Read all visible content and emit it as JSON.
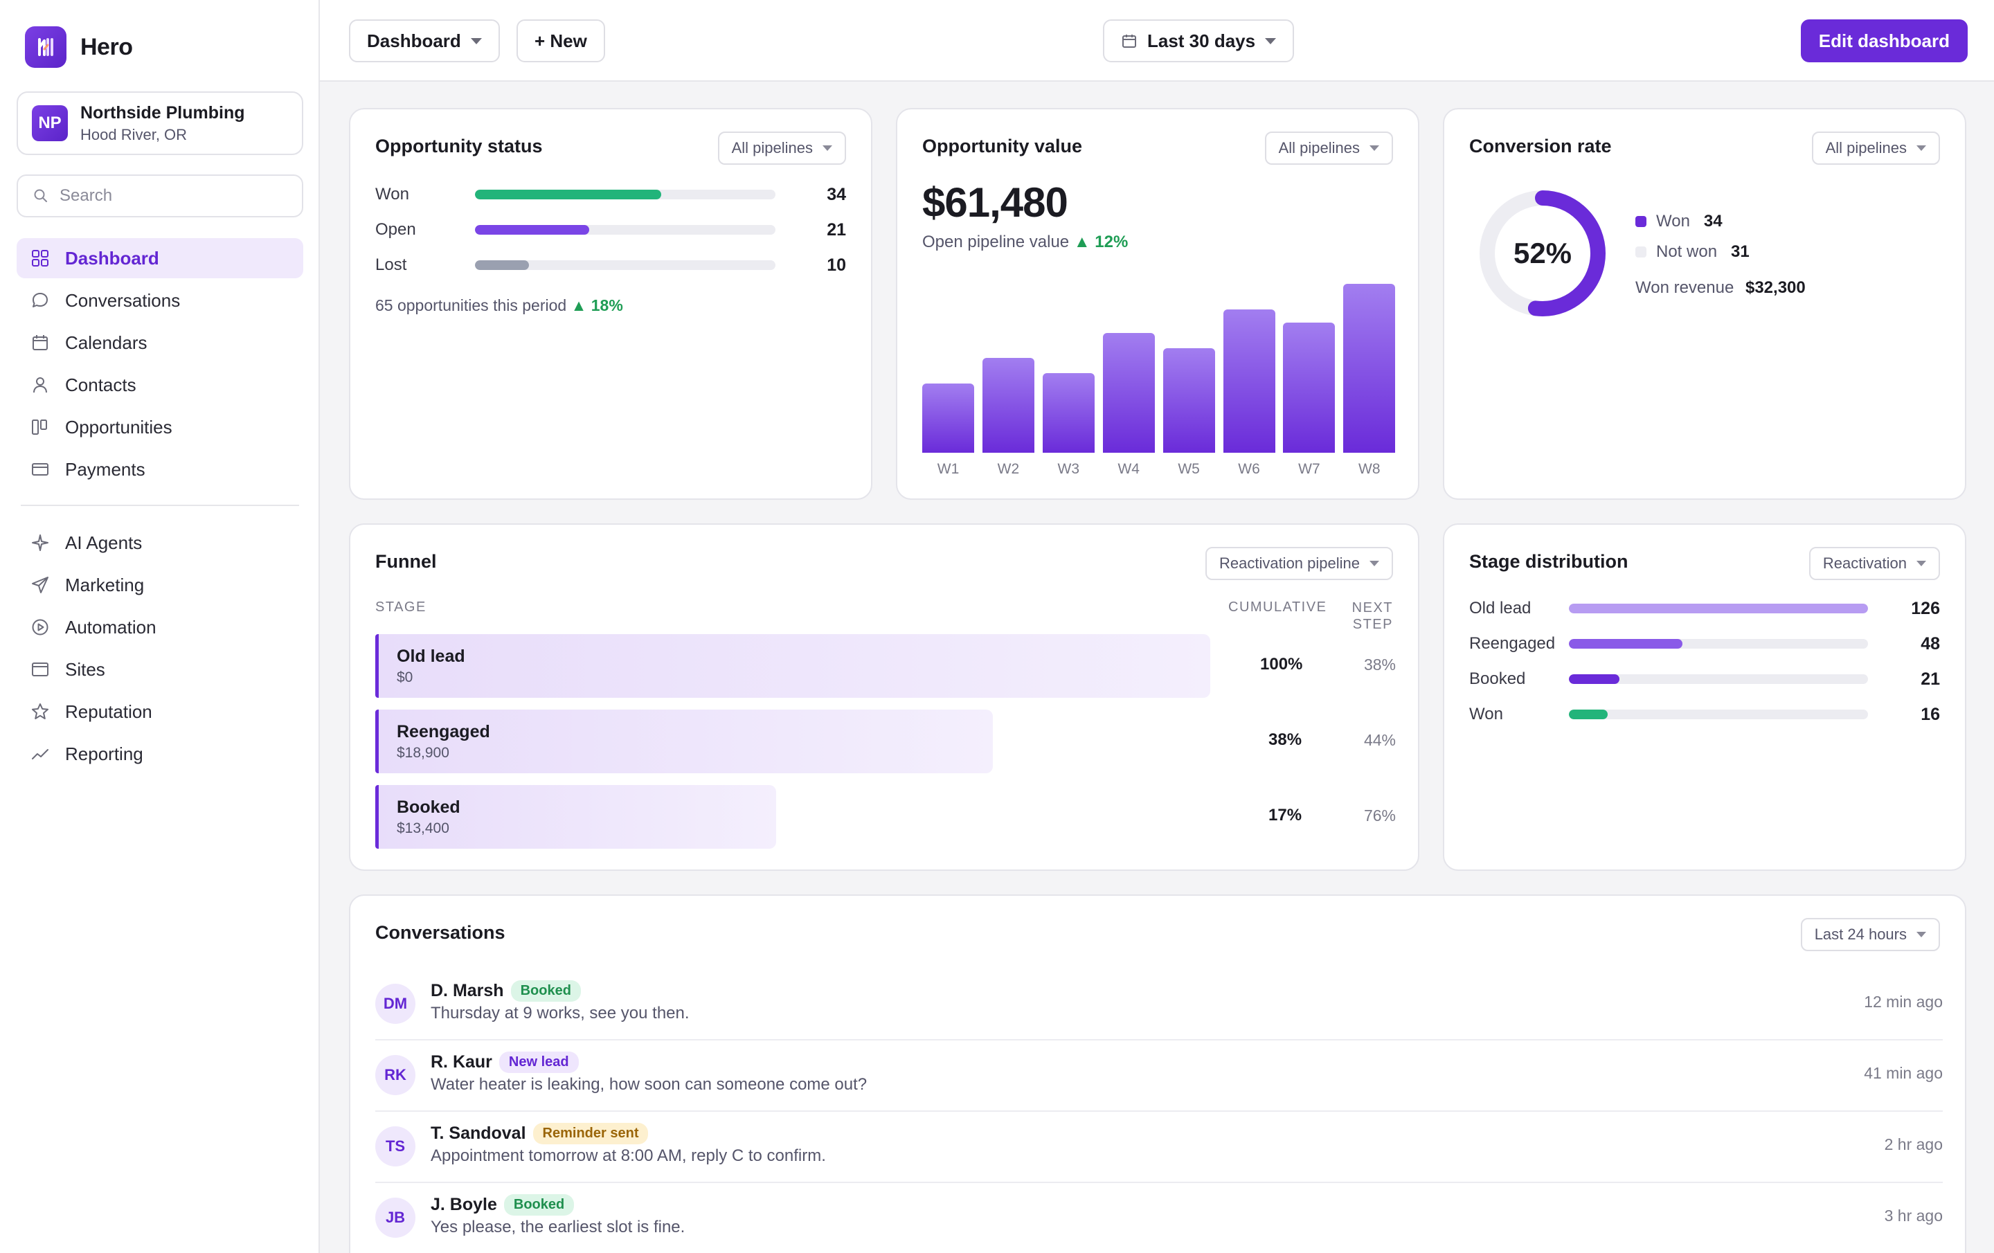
{
  "app": {
    "name": "Hero"
  },
  "account": {
    "initials": "NP",
    "name": "Northside Plumbing",
    "location": "Hood River, OR"
  },
  "search": {
    "placeholder": "Search"
  },
  "nav": {
    "primary": [
      {
        "label": "Dashboard",
        "icon": "grid-icon",
        "active": true
      },
      {
        "label": "Conversations",
        "icon": "chat-bubble-icon"
      },
      {
        "label": "Calendars",
        "icon": "calendar-icon"
      },
      {
        "label": "Contacts",
        "icon": "person-icon"
      },
      {
        "label": "Opportunities",
        "icon": "kanban-icon"
      },
      {
        "label": "Payments",
        "icon": "credit-card-icon"
      }
    ],
    "secondary": [
      {
        "label": "AI Agents",
        "icon": "sparkle-icon"
      },
      {
        "label": "Marketing",
        "icon": "send-icon"
      },
      {
        "label": "Automation",
        "icon": "play-circle-icon"
      },
      {
        "label": "Sites",
        "icon": "browser-window-icon"
      },
      {
        "label": "Reputation",
        "icon": "star-icon"
      },
      {
        "label": "Reporting",
        "icon": "trend-line-icon"
      }
    ]
  },
  "topbar": {
    "dashboard_select": "Dashboard",
    "new_button": "+ New",
    "date_range": "Last 30 days",
    "edit_button": "Edit dashboard"
  },
  "opportunity_status": {
    "title": "Opportunity status",
    "filter": "All pipelines",
    "rows": [
      {
        "label": "Won",
        "value": "34",
        "fraction": 0.62,
        "color": "#22b47a"
      },
      {
        "label": "Open",
        "value": "21",
        "fraction": 0.38,
        "color": "#7a45e6"
      },
      {
        "label": "Lost",
        "value": "10",
        "fraction": 0.18,
        "color": "#9aa0b0"
      }
    ],
    "footer": "65 opportunities this period",
    "footer_change": "▲ 18%"
  },
  "opportunity_value": {
    "title": "Opportunity value",
    "filter": "All pipelines",
    "amount": "$61,480",
    "subtitle": "Open pipeline value",
    "change": "▲ 12%",
    "chart_data": {
      "type": "bar",
      "categories": [
        "W1",
        "W2",
        "W3",
        "W4",
        "W5",
        "W6",
        "W7",
        "W8"
      ],
      "values": [
        0.41,
        0.56,
        0.47,
        0.71,
        0.62,
        0.85,
        0.77,
        1.0
      ],
      "ylim": [
        0,
        1
      ]
    }
  },
  "conversion_rate": {
    "title": "Conversion rate",
    "filter": "All pipelines",
    "percent": "52%",
    "fraction": 0.52,
    "won_label": "Won",
    "won_value": "34",
    "notwon_label": "Not won",
    "notwon_value": "31",
    "revenue_label": "Won revenue",
    "revenue_value": "$32,300",
    "accent": "#6a2bd9"
  },
  "funnel": {
    "title": "Funnel",
    "filter": "Reactivation pipeline",
    "col_stage": "STAGE",
    "col_cumulative": "CUMULATIVE",
    "col_next": "NEXT STEP",
    "rows": [
      {
        "name": "Old lead",
        "amount": "$0",
        "cumulative": "100%",
        "next": "38%",
        "fraction": 1.0
      },
      {
        "name": "Reengaged",
        "amount": "$18,900",
        "cumulative": "38%",
        "next": "44%",
        "fraction": 0.74
      },
      {
        "name": "Booked",
        "amount": "$13,400",
        "cumulative": "17%",
        "next": "76%",
        "fraction": 0.48
      }
    ]
  },
  "stage_distribution": {
    "title": "Stage distribution",
    "filter": "Reactivation",
    "rows": [
      {
        "label": "Old lead",
        "value": "126",
        "fraction": 1.0,
        "color": "#b79cf2"
      },
      {
        "label": "Reengaged",
        "value": "48",
        "fraction": 0.38,
        "color": "#8a5ae8"
      },
      {
        "label": "Booked",
        "value": "21",
        "fraction": 0.17,
        "color": "#6a2bd9"
      },
      {
        "label": "Won",
        "value": "16",
        "fraction": 0.13,
        "color": "#22b47a"
      }
    ]
  },
  "conversations": {
    "title": "Conversations",
    "filter": "Last 24 hours",
    "items": [
      {
        "initials": "DM",
        "name": "D. Marsh",
        "tag": "Booked",
        "tag_bg": "#dcf5e7",
        "tag_fg": "#1f8f4e",
        "message": "Thursday at 9 works, see you then.",
        "time": "12 min ago"
      },
      {
        "initials": "RK",
        "name": "R. Kaur",
        "tag": "New lead",
        "tag_bg": "#efe6fd",
        "tag_fg": "#6326d3",
        "message": "Water heater is leaking, how soon can someone come out?",
        "time": "41 min ago"
      },
      {
        "initials": "TS",
        "name": "T. Sandoval",
        "tag": "Reminder sent",
        "tag_bg": "#fdf0cf",
        "tag_fg": "#9a6508",
        "message": "Appointment tomorrow at 8:00 AM, reply C to confirm.",
        "time": "2 hr ago"
      },
      {
        "initials": "JB",
        "name": "J. Boyle",
        "tag": "Booked",
        "tag_bg": "#dcf5e7",
        "tag_fg": "#1f8f4e",
        "message": "Yes please, the earliest slot is fine.",
        "time": "3 hr ago"
      }
    ]
  }
}
